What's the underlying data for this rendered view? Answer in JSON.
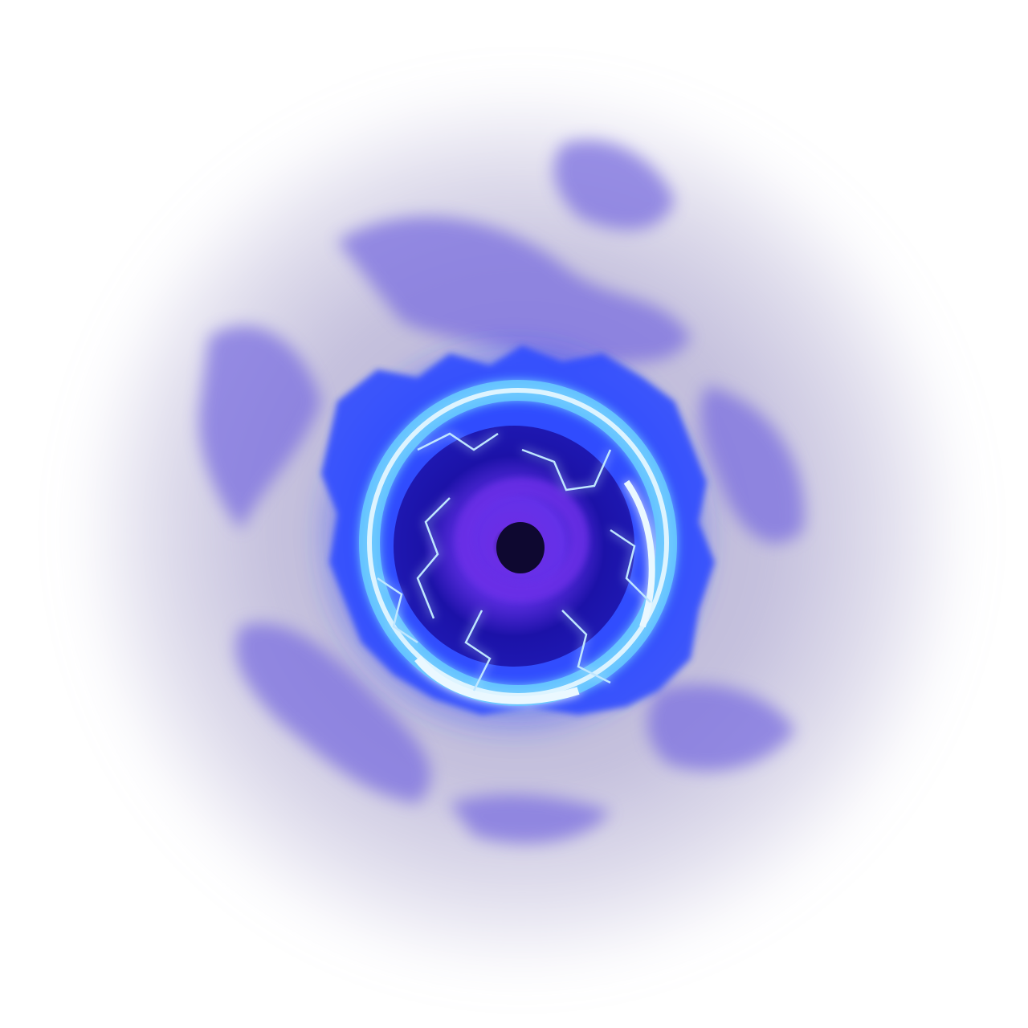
{
  "scene": {
    "subject": "vortex-portal",
    "colors": {
      "background": "#ffffff",
      "haze": "#b9b4d6",
      "smoke": "#7b6fe0",
      "glow": "#2f4bff",
      "ring": "#66c8ff",
      "ring_core": "#eaf8ff",
      "lightning": "#bfe6ff",
      "inner": "#1c12a8",
      "core": "#6a2ee6",
      "eye": "#0e0830"
    }
  }
}
